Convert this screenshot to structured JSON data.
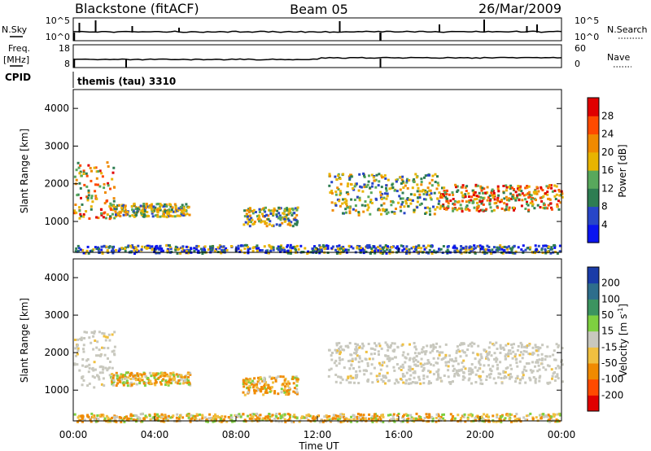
{
  "header": {
    "station": "Blackstone (fitACF)",
    "beam": "Beam 05",
    "date": "26/Mar/2009"
  },
  "strips": {
    "nsky_label": "N.Sky",
    "nsky_ticks": [
      "10^5",
      "10^0"
    ],
    "nsearch_label": "N.Search",
    "nsearch_ticks": [
      "10^5",
      "10^0"
    ],
    "freq_label": "Freq.",
    "freq_unit": "[MHz]",
    "freq_ticks": [
      "18",
      "8"
    ],
    "nave_label": "Nave",
    "nave_ticks": [
      "60",
      "0"
    ],
    "cpid_label": "CPID",
    "cpid_value": "themis (tau) 3310"
  },
  "chart_data": [
    {
      "type": "heatmap",
      "name": "Power",
      "ylabel": "Slant Range [km]",
      "ylim": [
        180,
        4500
      ],
      "yticks": [
        "1000",
        "2000",
        "3000",
        "4000"
      ],
      "xlabel": "Time UT",
      "x_ticks": [
        "00:00",
        "04:00",
        "08:00",
        "12:00",
        "16:00",
        "20:00",
        "00:00"
      ],
      "colorbar": {
        "label": "Power [dB]",
        "ticks": [
          "4",
          "8",
          "12",
          "16",
          "20",
          "24",
          "28"
        ],
        "range": [
          0,
          30
        ],
        "colors": [
          "#0a14f0",
          "#2846c8",
          "#2e7d52",
          "#58a85c",
          "#e8b400",
          "#f08a00",
          "#ff4a00",
          "#e00000"
        ]
      },
      "echo_regions": [
        {
          "t_start": 0.0,
          "t_end": 2.0,
          "r_min": 1100,
          "r_max": 2600,
          "level": "high"
        },
        {
          "t_start": 1.8,
          "t_end": 5.7,
          "r_min": 1150,
          "r_max": 1500,
          "level": "mid"
        },
        {
          "t_start": 8.3,
          "t_end": 11.0,
          "r_min": 900,
          "r_max": 1400,
          "level": "mid"
        },
        {
          "t_start": 12.5,
          "t_end": 18.0,
          "r_min": 1200,
          "r_max": 2300,
          "level": "mid"
        },
        {
          "t_start": 18.0,
          "t_end": 24.0,
          "r_min": 1300,
          "r_max": 2000,
          "level": "high"
        },
        {
          "t_start": 0.0,
          "t_end": 24.0,
          "r_min": 180,
          "r_max": 400,
          "level": "low"
        }
      ]
    },
    {
      "type": "heatmap",
      "name": "Velocity",
      "ylabel": "Slant Range [km]",
      "ylim": [
        180,
        4500
      ],
      "yticks": [
        "1000",
        "2000",
        "3000",
        "4000"
      ],
      "xlabel": "Time UT",
      "x_ticks": [
        "00:00",
        "04:00",
        "08:00",
        "12:00",
        "16:00",
        "20:00",
        "00:00"
      ],
      "colorbar": {
        "label": "Velocity [m s",
        "label_sup": "-1",
        "label_end": "]",
        "ticks": [
          "200",
          "100",
          "50",
          "15",
          "-15",
          "-50",
          "-100",
          "-200"
        ],
        "colors": [
          "#1a3ca8",
          "#2e6e8c",
          "#3c9460",
          "#7ed040",
          "#c8c8be",
          "#f0c040",
          "#f08a00",
          "#ff4a00",
          "#e00000"
        ]
      },
      "echo_regions": [
        {
          "t_start": 0.0,
          "t_end": 2.0,
          "r_min": 1100,
          "r_max": 2600,
          "level": "ground"
        },
        {
          "t_start": 1.8,
          "t_end": 5.7,
          "r_min": 1150,
          "r_max": 1500,
          "level": "away"
        },
        {
          "t_start": 8.3,
          "t_end": 11.0,
          "r_min": 900,
          "r_max": 1400,
          "level": "away"
        },
        {
          "t_start": 12.5,
          "t_end": 24.0,
          "r_min": 1200,
          "r_max": 2300,
          "level": "ground"
        },
        {
          "t_start": 0.0,
          "t_end": 24.0,
          "r_min": 180,
          "r_max": 400,
          "level": "away"
        }
      ]
    }
  ]
}
